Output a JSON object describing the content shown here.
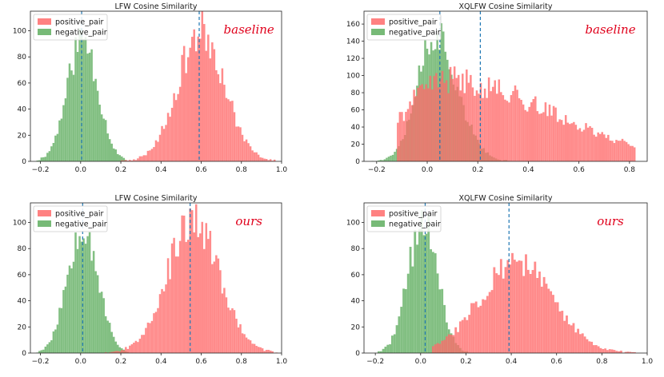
{
  "figure_name": "cosine-similarity-histograms",
  "colors": {
    "positive": "#ff6b6b",
    "negative": "#5fae5f",
    "overlap": "#7d6b24",
    "mean_line": "#1f77b4",
    "annotation": "#e0001b"
  },
  "chart_data": [
    {
      "type": "histogram",
      "title": "LFW Cosine Similarity",
      "annotation": "baseline",
      "legend": [
        "positive_pair",
        "negative_pair"
      ],
      "legend_position": "top-left",
      "xlim": [
        -0.25,
        1.0
      ],
      "ylim": [
        0,
        115
      ],
      "xticks": [
        -0.2,
        0.0,
        0.2,
        0.4,
        0.6,
        0.8,
        1.0
      ],
      "xtick_labels": [
        "−0.2",
        "0.0",
        "0.2",
        "0.4",
        "0.6",
        "0.8",
        "1.0"
      ],
      "yticks": [
        0,
        20,
        40,
        60,
        80,
        100
      ],
      "ytick_labels": [
        "0",
        "20",
        "40",
        "60",
        "80",
        "100"
      ],
      "bin_width": 0.01,
      "mean_lines": [
        0.005,
        0.59
      ],
      "series": [
        {
          "name": "negative_pair",
          "mean": 0.01,
          "std": 0.075,
          "skew": 0,
          "peak": 95,
          "start": -0.22,
          "end": 0.23,
          "seed": 11
        },
        {
          "name": "positive_pair",
          "mean": 0.6,
          "std": 0.115,
          "skew": 0,
          "peak": 100,
          "start": 0.18,
          "end": 0.97,
          "seed": 23
        }
      ]
    },
    {
      "type": "histogram",
      "title": "XQLFW Cosine Similarity",
      "annotation": "baseline",
      "legend": [
        "positive_pair",
        "negative_pair"
      ],
      "legend_position": "top-left",
      "xlim": [
        -0.25,
        0.87
      ],
      "ylim": [
        0,
        175
      ],
      "xticks": [
        -0.2,
        0.0,
        0.2,
        0.4,
        0.6,
        0.8
      ],
      "xtick_labels": [
        "−0.2",
        "0.0",
        "0.2",
        "0.4",
        "0.6",
        "0.8"
      ],
      "yticks": [
        0,
        20,
        40,
        60,
        80,
        100,
        120,
        140,
        160
      ],
      "ytick_labels": [
        "0",
        "20",
        "40",
        "60",
        "80",
        "100",
        "120",
        "140",
        "160"
      ],
      "bin_width": 0.008,
      "mean_lines": [
        0.05,
        0.21
      ],
      "series": [
        {
          "name": "negative_pair",
          "mean": 0.03,
          "std": 0.07,
          "skew": 0.25,
          "peak": 150,
          "start": -0.22,
          "end": 0.32,
          "seed": 37
        },
        {
          "name": "positive_pair",
          "mean": 0.07,
          "std": 0.16,
          "skew": 1.6,
          "peak": 95,
          "start": -0.12,
          "end": 0.82,
          "seed": 41
        }
      ]
    },
    {
      "type": "histogram",
      "title": "LFW Cosine Similarity",
      "annotation": "ours",
      "legend": [
        "positive_pair",
        "negative_pair"
      ],
      "legend_position": "top-left",
      "xlim": [
        -0.25,
        1.0
      ],
      "ylim": [
        0,
        115
      ],
      "xticks": [
        -0.2,
        0.0,
        0.2,
        0.4,
        0.6,
        0.8,
        1.0
      ],
      "xtick_labels": [
        "−0.2",
        "0.0",
        "0.2",
        "0.4",
        "0.6",
        "0.8",
        "1.0"
      ],
      "yticks": [
        0,
        20,
        40,
        60,
        80,
        100
      ],
      "ytick_labels": [
        "0",
        "20",
        "40",
        "60",
        "80",
        "100"
      ],
      "bin_width": 0.01,
      "mean_lines": [
        0.01,
        0.545
      ],
      "series": [
        {
          "name": "negative_pair",
          "mean": 0.01,
          "std": 0.075,
          "skew": 0,
          "peak": 100,
          "start": -0.22,
          "end": 0.24,
          "seed": 53
        },
        {
          "name": "positive_pair",
          "mean": 0.56,
          "std": 0.13,
          "skew": 0,
          "peak": 100,
          "start": 0.1,
          "end": 0.98,
          "seed": 67
        }
      ]
    },
    {
      "type": "histogram",
      "title": "XQLFW Cosine Similarity",
      "annotation": "ours",
      "legend": [
        "positive_pair",
        "negative_pair"
      ],
      "legend_position": "top-left",
      "xlim": [
        -0.25,
        1.0
      ],
      "ylim": [
        0,
        115
      ],
      "xticks": [
        -0.2,
        0.0,
        0.2,
        0.4,
        0.6,
        0.8,
        1.0
      ],
      "xtick_labels": [
        "−0.2",
        "0.0",
        "0.2",
        "0.4",
        "0.6",
        "0.8",
        "1.0"
      ],
      "yticks": [
        0,
        20,
        40,
        60,
        80,
        100
      ],
      "ytick_labels": [
        "0",
        "20",
        "40",
        "60",
        "80",
        "100"
      ],
      "bin_width": 0.01,
      "mean_lines": [
        0.02,
        0.39
      ],
      "series": [
        {
          "name": "negative_pair",
          "mean": 0.01,
          "std": 0.065,
          "skew": 0,
          "peak": 100,
          "start": -0.19,
          "end": 0.24,
          "seed": 71
        },
        {
          "name": "positive_pair",
          "mean": 0.42,
          "std": 0.16,
          "skew": 0,
          "peak": 70,
          "start": 0.05,
          "end": 0.95,
          "seed": 83
        }
      ]
    }
  ]
}
